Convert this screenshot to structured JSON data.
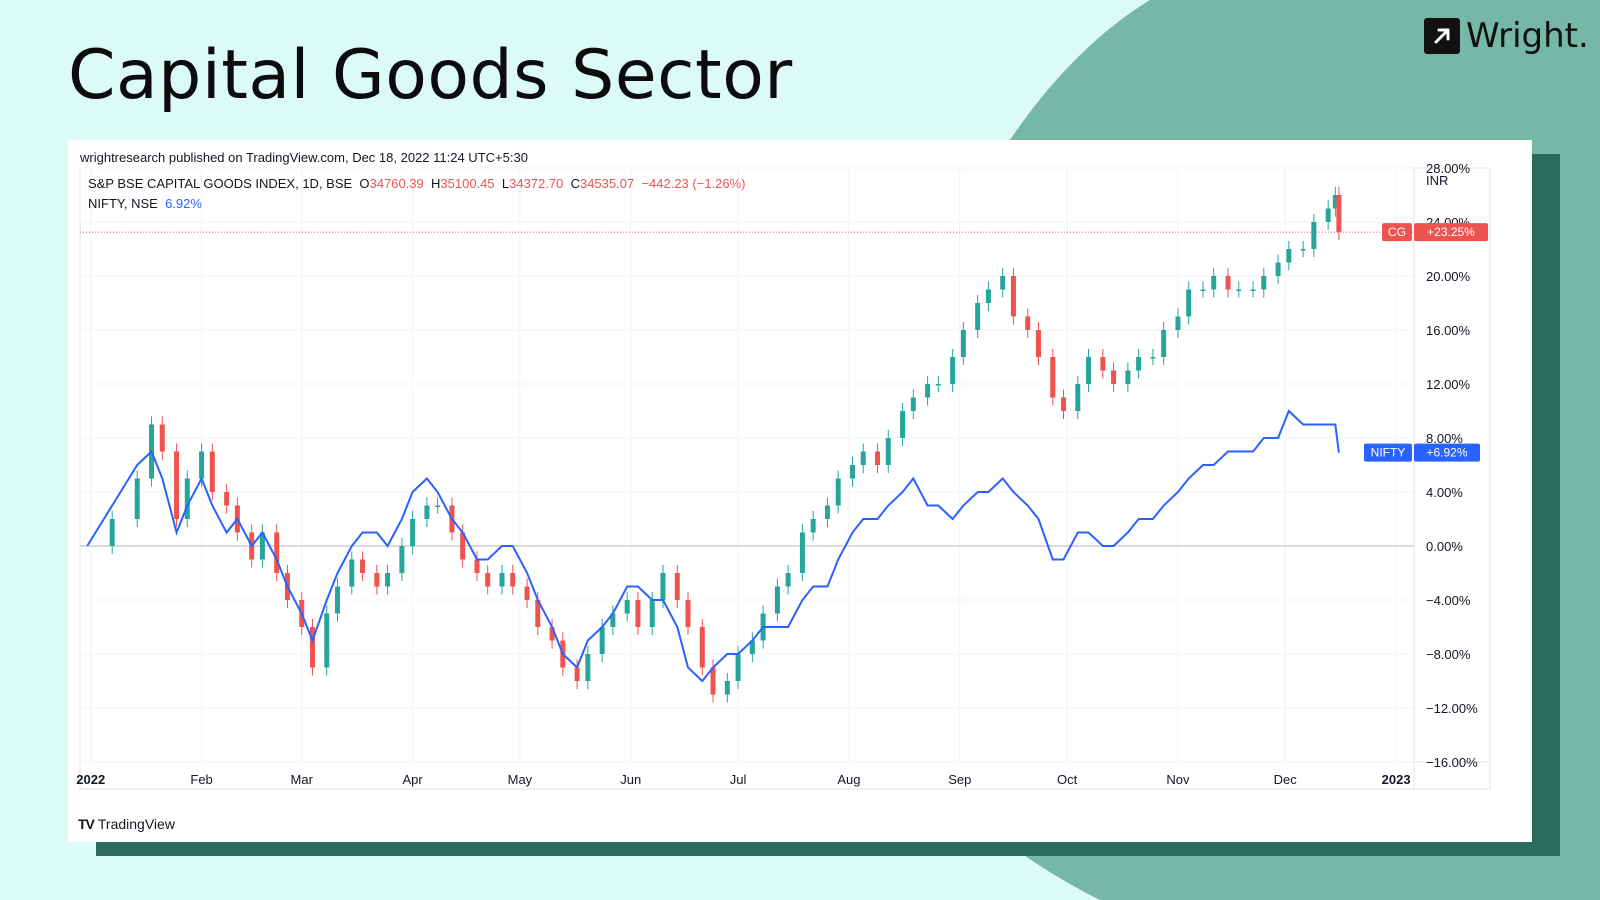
{
  "slide": {
    "title": "Capital Goods Sector",
    "brand": "Wright."
  },
  "publish_line": "wrightresearch published on TradingView.com, Dec 18, 2022 11:24 UTC+5:30",
  "legend": {
    "main_name": "S&P BSE CAPITAL GOODS INDEX, 1D, BSE",
    "o_label": "O",
    "o_value": "34760.39",
    "h_label": "H",
    "h_value": "35100.45",
    "l_label": "L",
    "l_value": "34372.70",
    "c_label": "C",
    "c_value": "34535.07",
    "change": "−442.23 (−1.26%)",
    "nifty_name": "NIFTY, NSE",
    "nifty_value": "6.92%"
  },
  "footer": {
    "brand": "TradingView"
  },
  "colors": {
    "up": "#26a69a",
    "down": "#ef5350",
    "nifty": "#2962ff",
    "background": "#dcfbf7",
    "blob": "#74b8a5"
  },
  "chart_data": {
    "type": "line",
    "currency_label": "INR",
    "x_ticks": [
      {
        "label": "2022",
        "date": "2022-01-01",
        "bold": true
      },
      {
        "label": "Feb",
        "date": "2022-02-01"
      },
      {
        "label": "Mar",
        "date": "2022-03-01"
      },
      {
        "label": "Apr",
        "date": "2022-04-01"
      },
      {
        "label": "May",
        "date": "2022-05-01"
      },
      {
        "label": "Jun",
        "date": "2022-06-01"
      },
      {
        "label": "Jul",
        "date": "2022-07-01"
      },
      {
        "label": "Aug",
        "date": "2022-08-01"
      },
      {
        "label": "Sep",
        "date": "2022-09-01"
      },
      {
        "label": "Oct",
        "date": "2022-10-01"
      },
      {
        "label": "Nov",
        "date": "2022-11-01"
      },
      {
        "label": "Dec",
        "date": "2022-12-01"
      },
      {
        "label": "2023",
        "date": "2023-01-01",
        "bold": true
      }
    ],
    "y_ticks": [
      "28.00%",
      "24.00%",
      "20.00%",
      "16.00%",
      "12.00%",
      "8.00%",
      "4.00%",
      "0.00%",
      "−4.00%",
      "−8.00%",
      "−12.00%",
      "−16.00%"
    ],
    "y_tick_values": [
      28,
      24,
      20,
      16,
      12,
      8,
      4,
      0,
      -4,
      -8,
      -12,
      -16
    ],
    "ylim": [
      -16,
      28
    ],
    "x_range": [
      "2021-12-29",
      "2023-01-06"
    ],
    "series": [
      {
        "name": "S&P BSE CAPITAL GOODS INDEX",
        "tag": "CG",
        "last_label": "+23.25%",
        "style": "candles",
        "points": [
          [
            "2021-12-31",
            0
          ],
          [
            "2022-01-07",
            2
          ],
          [
            "2022-01-14",
            5
          ],
          [
            "2022-01-18",
            9
          ],
          [
            "2022-01-21",
            7
          ],
          [
            "2022-01-25",
            2
          ],
          [
            "2022-01-28",
            5
          ],
          [
            "2022-02-01",
            7
          ],
          [
            "2022-02-04",
            4
          ],
          [
            "2022-02-08",
            3
          ],
          [
            "2022-02-11",
            1
          ],
          [
            "2022-02-15",
            -1
          ],
          [
            "2022-02-18",
            1
          ],
          [
            "2022-02-22",
            -2
          ],
          [
            "2022-02-25",
            -4
          ],
          [
            "2022-03-01",
            -6
          ],
          [
            "2022-03-04",
            -9
          ],
          [
            "2022-03-08",
            -5
          ],
          [
            "2022-03-11",
            -3
          ],
          [
            "2022-03-15",
            -1
          ],
          [
            "2022-03-18",
            -2
          ],
          [
            "2022-03-22",
            -3
          ],
          [
            "2022-03-25",
            -2
          ],
          [
            "2022-03-29",
            0
          ],
          [
            "2022-04-01",
            2
          ],
          [
            "2022-04-05",
            3
          ],
          [
            "2022-04-08",
            3
          ],
          [
            "2022-04-12",
            1
          ],
          [
            "2022-04-15",
            -1
          ],
          [
            "2022-04-19",
            -2
          ],
          [
            "2022-04-22",
            -3
          ],
          [
            "2022-04-26",
            -2
          ],
          [
            "2022-04-29",
            -3
          ],
          [
            "2022-05-03",
            -4
          ],
          [
            "2022-05-06",
            -6
          ],
          [
            "2022-05-10",
            -7
          ],
          [
            "2022-05-13",
            -9
          ],
          [
            "2022-05-17",
            -10
          ],
          [
            "2022-05-20",
            -8
          ],
          [
            "2022-05-24",
            -6
          ],
          [
            "2022-05-27",
            -5
          ],
          [
            "2022-05-31",
            -4
          ],
          [
            "2022-06-03",
            -6
          ],
          [
            "2022-06-07",
            -4
          ],
          [
            "2022-06-10",
            -2
          ],
          [
            "2022-06-14",
            -4
          ],
          [
            "2022-06-17",
            -6
          ],
          [
            "2022-06-21",
            -9
          ],
          [
            "2022-06-24",
            -11
          ],
          [
            "2022-06-28",
            -10
          ],
          [
            "2022-07-01",
            -8
          ],
          [
            "2022-07-05",
            -7
          ],
          [
            "2022-07-08",
            -5
          ],
          [
            "2022-07-12",
            -3
          ],
          [
            "2022-07-15",
            -2
          ],
          [
            "2022-07-19",
            1
          ],
          [
            "2022-07-22",
            2
          ],
          [
            "2022-07-26",
            3
          ],
          [
            "2022-07-29",
            5
          ],
          [
            "2022-08-02",
            6
          ],
          [
            "2022-08-05",
            7
          ],
          [
            "2022-08-09",
            6
          ],
          [
            "2022-08-12",
            8
          ],
          [
            "2022-08-16",
            10
          ],
          [
            "2022-08-19",
            11
          ],
          [
            "2022-08-23",
            12
          ],
          [
            "2022-08-26",
            12
          ],
          [
            "2022-08-30",
            14
          ],
          [
            "2022-09-02",
            16
          ],
          [
            "2022-09-06",
            18
          ],
          [
            "2022-09-09",
            19
          ],
          [
            "2022-09-13",
            20
          ],
          [
            "2022-09-16",
            17
          ],
          [
            "2022-09-20",
            16
          ],
          [
            "2022-09-23",
            14
          ],
          [
            "2022-09-27",
            11
          ],
          [
            "2022-09-30",
            10
          ],
          [
            "2022-10-04",
            12
          ],
          [
            "2022-10-07",
            14
          ],
          [
            "2022-10-11",
            13
          ],
          [
            "2022-10-14",
            12
          ],
          [
            "2022-10-18",
            13
          ],
          [
            "2022-10-21",
            14
          ],
          [
            "2022-10-25",
            14
          ],
          [
            "2022-10-28",
            16
          ],
          [
            "2022-11-01",
            17
          ],
          [
            "2022-11-04",
            19
          ],
          [
            "2022-11-08",
            19
          ],
          [
            "2022-11-11",
            20
          ],
          [
            "2022-11-15",
            19
          ],
          [
            "2022-11-18",
            19
          ],
          [
            "2022-11-22",
            19
          ],
          [
            "2022-11-25",
            20
          ],
          [
            "2022-11-29",
            21
          ],
          [
            "2022-12-02",
            22
          ],
          [
            "2022-12-06",
            22
          ],
          [
            "2022-12-09",
            24
          ],
          [
            "2022-12-13",
            25
          ],
          [
            "2022-12-15",
            26
          ],
          [
            "2022-12-16",
            23.25
          ]
        ]
      },
      {
        "name": "NIFTY",
        "tag": "NIFTY",
        "last_label": "+6.92%",
        "style": "line",
        "points": [
          [
            "2021-12-31",
            0
          ],
          [
            "2022-01-07",
            3
          ],
          [
            "2022-01-14",
            6
          ],
          [
            "2022-01-18",
            7
          ],
          [
            "2022-01-21",
            5
          ],
          [
            "2022-01-25",
            1
          ],
          [
            "2022-01-28",
            3
          ],
          [
            "2022-02-01",
            5
          ],
          [
            "2022-02-04",
            3
          ],
          [
            "2022-02-08",
            1
          ],
          [
            "2022-02-11",
            2
          ],
          [
            "2022-02-15",
            0
          ],
          [
            "2022-02-18",
            1
          ],
          [
            "2022-02-22",
            -1
          ],
          [
            "2022-02-25",
            -3
          ],
          [
            "2022-03-01",
            -5
          ],
          [
            "2022-03-04",
            -7
          ],
          [
            "2022-03-08",
            -4
          ],
          [
            "2022-03-11",
            -2
          ],
          [
            "2022-03-15",
            0
          ],
          [
            "2022-03-18",
            1
          ],
          [
            "2022-03-22",
            1
          ],
          [
            "2022-03-25",
            0
          ],
          [
            "2022-03-29",
            2
          ],
          [
            "2022-04-01",
            4
          ],
          [
            "2022-04-05",
            5
          ],
          [
            "2022-04-08",
            4
          ],
          [
            "2022-04-12",
            2
          ],
          [
            "2022-04-15",
            1
          ],
          [
            "2022-04-19",
            -1
          ],
          [
            "2022-04-22",
            -1
          ],
          [
            "2022-04-26",
            0
          ],
          [
            "2022-04-29",
            0
          ],
          [
            "2022-05-03",
            -2
          ],
          [
            "2022-05-06",
            -4
          ],
          [
            "2022-05-10",
            -6
          ],
          [
            "2022-05-13",
            -8
          ],
          [
            "2022-05-17",
            -9
          ],
          [
            "2022-05-20",
            -7
          ],
          [
            "2022-05-24",
            -6
          ],
          [
            "2022-05-27",
            -5
          ],
          [
            "2022-05-31",
            -3
          ],
          [
            "2022-06-03",
            -3
          ],
          [
            "2022-06-07",
            -4
          ],
          [
            "2022-06-10",
            -4
          ],
          [
            "2022-06-14",
            -6
          ],
          [
            "2022-06-17",
            -9
          ],
          [
            "2022-06-21",
            -10
          ],
          [
            "2022-06-24",
            -9
          ],
          [
            "2022-06-28",
            -8
          ],
          [
            "2022-07-01",
            -8
          ],
          [
            "2022-07-05",
            -7
          ],
          [
            "2022-07-08",
            -6
          ],
          [
            "2022-07-12",
            -6
          ],
          [
            "2022-07-15",
            -6
          ],
          [
            "2022-07-19",
            -4
          ],
          [
            "2022-07-22",
            -3
          ],
          [
            "2022-07-26",
            -3
          ],
          [
            "2022-07-29",
            -1
          ],
          [
            "2022-08-02",
            1
          ],
          [
            "2022-08-05",
            2
          ],
          [
            "2022-08-09",
            2
          ],
          [
            "2022-08-12",
            3
          ],
          [
            "2022-08-16",
            4
          ],
          [
            "2022-08-19",
            5
          ],
          [
            "2022-08-23",
            3
          ],
          [
            "2022-08-26",
            3
          ],
          [
            "2022-08-30",
            2
          ],
          [
            "2022-09-02",
            3
          ],
          [
            "2022-09-06",
            4
          ],
          [
            "2022-09-09",
            4
          ],
          [
            "2022-09-13",
            5
          ],
          [
            "2022-09-16",
            4
          ],
          [
            "2022-09-20",
            3
          ],
          [
            "2022-09-23",
            2
          ],
          [
            "2022-09-27",
            -1
          ],
          [
            "2022-09-30",
            -1
          ],
          [
            "2022-10-04",
            1
          ],
          [
            "2022-10-07",
            1
          ],
          [
            "2022-10-11",
            0
          ],
          [
            "2022-10-14",
            0
          ],
          [
            "2022-10-18",
            1
          ],
          [
            "2022-10-21",
            2
          ],
          [
            "2022-10-25",
            2
          ],
          [
            "2022-10-28",
            3
          ],
          [
            "2022-11-01",
            4
          ],
          [
            "2022-11-04",
            5
          ],
          [
            "2022-11-08",
            6
          ],
          [
            "2022-11-11",
            6
          ],
          [
            "2022-11-15",
            7
          ],
          [
            "2022-11-18",
            7
          ],
          [
            "2022-11-22",
            7
          ],
          [
            "2022-11-25",
            8
          ],
          [
            "2022-11-29",
            8
          ],
          [
            "2022-12-02",
            10
          ],
          [
            "2022-12-06",
            9
          ],
          [
            "2022-12-09",
            9
          ],
          [
            "2022-12-13",
            9
          ],
          [
            "2022-12-15",
            9
          ],
          [
            "2022-12-16",
            6.92
          ]
        ]
      }
    ]
  }
}
